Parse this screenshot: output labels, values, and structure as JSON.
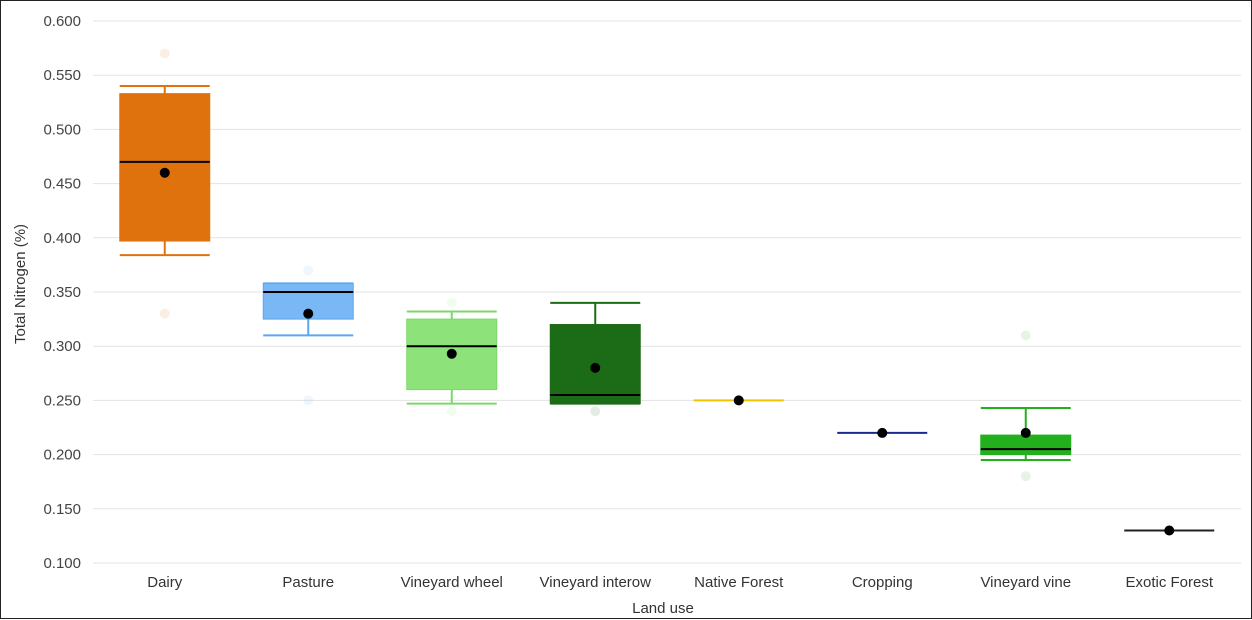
{
  "chart_data": {
    "type": "box",
    "xlabel": "Land use",
    "ylabel": "Total Nitrogen (%)",
    "ylim": [
      0.1,
      0.6
    ],
    "y_ticks": [
      "0.100",
      "0.150",
      "0.200",
      "0.250",
      "0.300",
      "0.350",
      "0.400",
      "0.450",
      "0.500",
      "0.550",
      "0.600"
    ],
    "grid": "horizontal",
    "categories": [
      "Dairy",
      "Pasture",
      "Vineyard wheel",
      "Vineyard interow",
      "Native Forest",
      "Cropping",
      "Vineyard vine",
      "Exotic Forest"
    ],
    "series": [
      {
        "category": "Dairy",
        "whisker_low": 0.384,
        "q1": 0.397,
        "median": 0.47,
        "q3": 0.533,
        "whisker_high": 0.54,
        "mean": 0.46,
        "outliers": [
          0.57,
          0.33
        ],
        "color": "#e0720e",
        "edge": "#e0720e",
        "median_color": "#000000"
      },
      {
        "category": "Pasture",
        "whisker_low": 0.31,
        "q1": 0.325,
        "median": 0.35,
        "q3": 0.358,
        "whisker_high": 0.358,
        "mean": 0.33,
        "outliers": [
          0.37,
          0.25
        ],
        "color": "#7ab8f5",
        "edge": "#5aa6f0",
        "median_color": "#000000"
      },
      {
        "category": "Vineyard wheel",
        "whisker_low": 0.247,
        "q1": 0.26,
        "median": 0.3,
        "q3": 0.325,
        "whisker_high": 0.332,
        "mean": 0.293,
        "outliers": [
          0.34,
          0.24
        ],
        "color": "#8ee27a",
        "edge": "#7cd86a",
        "median_color": "#000000"
      },
      {
        "category": "Vineyard interow",
        "whisker_low": 0.247,
        "q1": 0.247,
        "median": 0.255,
        "q3": 0.32,
        "whisker_high": 0.34,
        "mean": 0.28,
        "outliers": [
          0.24
        ],
        "color": "#1c6b17",
        "edge": "#1c6b17",
        "median_color": "#000000"
      },
      {
        "category": "Native Forest",
        "whisker_low": 0.25,
        "q1": 0.25,
        "median": 0.25,
        "q3": 0.25,
        "whisker_high": 0.25,
        "mean": 0.25,
        "outliers": [],
        "color": "#f2c400",
        "edge": "#f2c400",
        "median_color": "#f2c400"
      },
      {
        "category": "Cropping",
        "whisker_low": 0.22,
        "q1": 0.22,
        "median": 0.22,
        "q3": 0.22,
        "whisker_high": 0.22,
        "mean": 0.22,
        "outliers": [],
        "color": "#1a2a8c",
        "edge": "#1a2a8c",
        "median_color": "#1a2a8c"
      },
      {
        "category": "Vineyard vine",
        "whisker_low": 0.195,
        "q1": 0.2,
        "median": 0.205,
        "q3": 0.218,
        "whisker_high": 0.243,
        "mean": 0.22,
        "outliers": [
          0.31,
          0.18
        ],
        "color": "#22b11c",
        "edge": "#22b11c",
        "median_color": "#000000"
      },
      {
        "category": "Exotic Forest",
        "whisker_low": 0.13,
        "q1": 0.13,
        "median": 0.13,
        "q3": 0.13,
        "whisker_high": 0.13,
        "mean": 0.13,
        "outliers": [],
        "color": "#222222",
        "edge": "#222222",
        "median_color": "#222222"
      }
    ]
  }
}
